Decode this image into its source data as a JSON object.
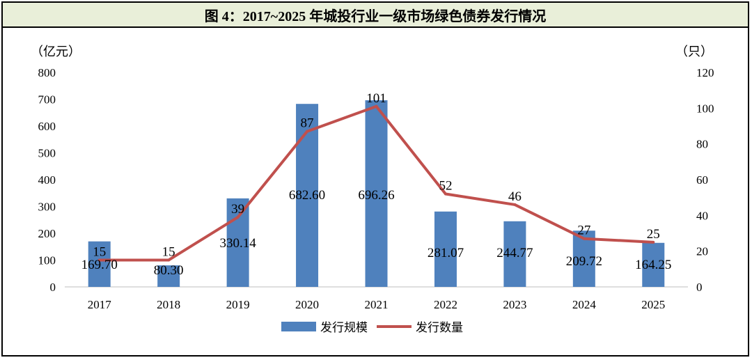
{
  "title": "图 4：2017~2025 年城投行业一级市场绿色债券发行情况",
  "chart_data": {
    "type": "bar+line",
    "categories": [
      "2017",
      "2018",
      "2019",
      "2020",
      "2021",
      "2022",
      "2023",
      "2024",
      "2025"
    ],
    "series": [
      {
        "name": "发行规模",
        "type": "bar",
        "axis": "left",
        "color": "#4f81bd",
        "values": [
          169.7,
          80.3,
          330.14,
          682.6,
          696.26,
          281.07,
          244.77,
          209.72,
          164.25
        ],
        "labels": [
          "169.70",
          "80.30",
          "330.14",
          "682.60",
          "696.26",
          "281.07",
          "244.77",
          "209.72",
          "164.25"
        ]
      },
      {
        "name": "发行数量",
        "type": "line",
        "axis": "right",
        "color": "#c0504d",
        "values": [
          15,
          15,
          39,
          87,
          101,
          52,
          46,
          27,
          25
        ],
        "labels": [
          "15",
          "15",
          "39",
          "87",
          "101",
          "52",
          "46",
          "27",
          "25"
        ]
      }
    ],
    "y_left": {
      "unit": "（亿元）",
      "min": 0,
      "max": 800,
      "ticks": [
        "0",
        "100",
        "200",
        "300",
        "400",
        "500",
        "600",
        "700",
        "800"
      ]
    },
    "y_right": {
      "unit": "（只）",
      "min": 0,
      "max": 120,
      "ticks": [
        "0",
        "20",
        "40",
        "60",
        "80",
        "100",
        "120"
      ]
    },
    "grid": false,
    "legend": "bottom"
  }
}
